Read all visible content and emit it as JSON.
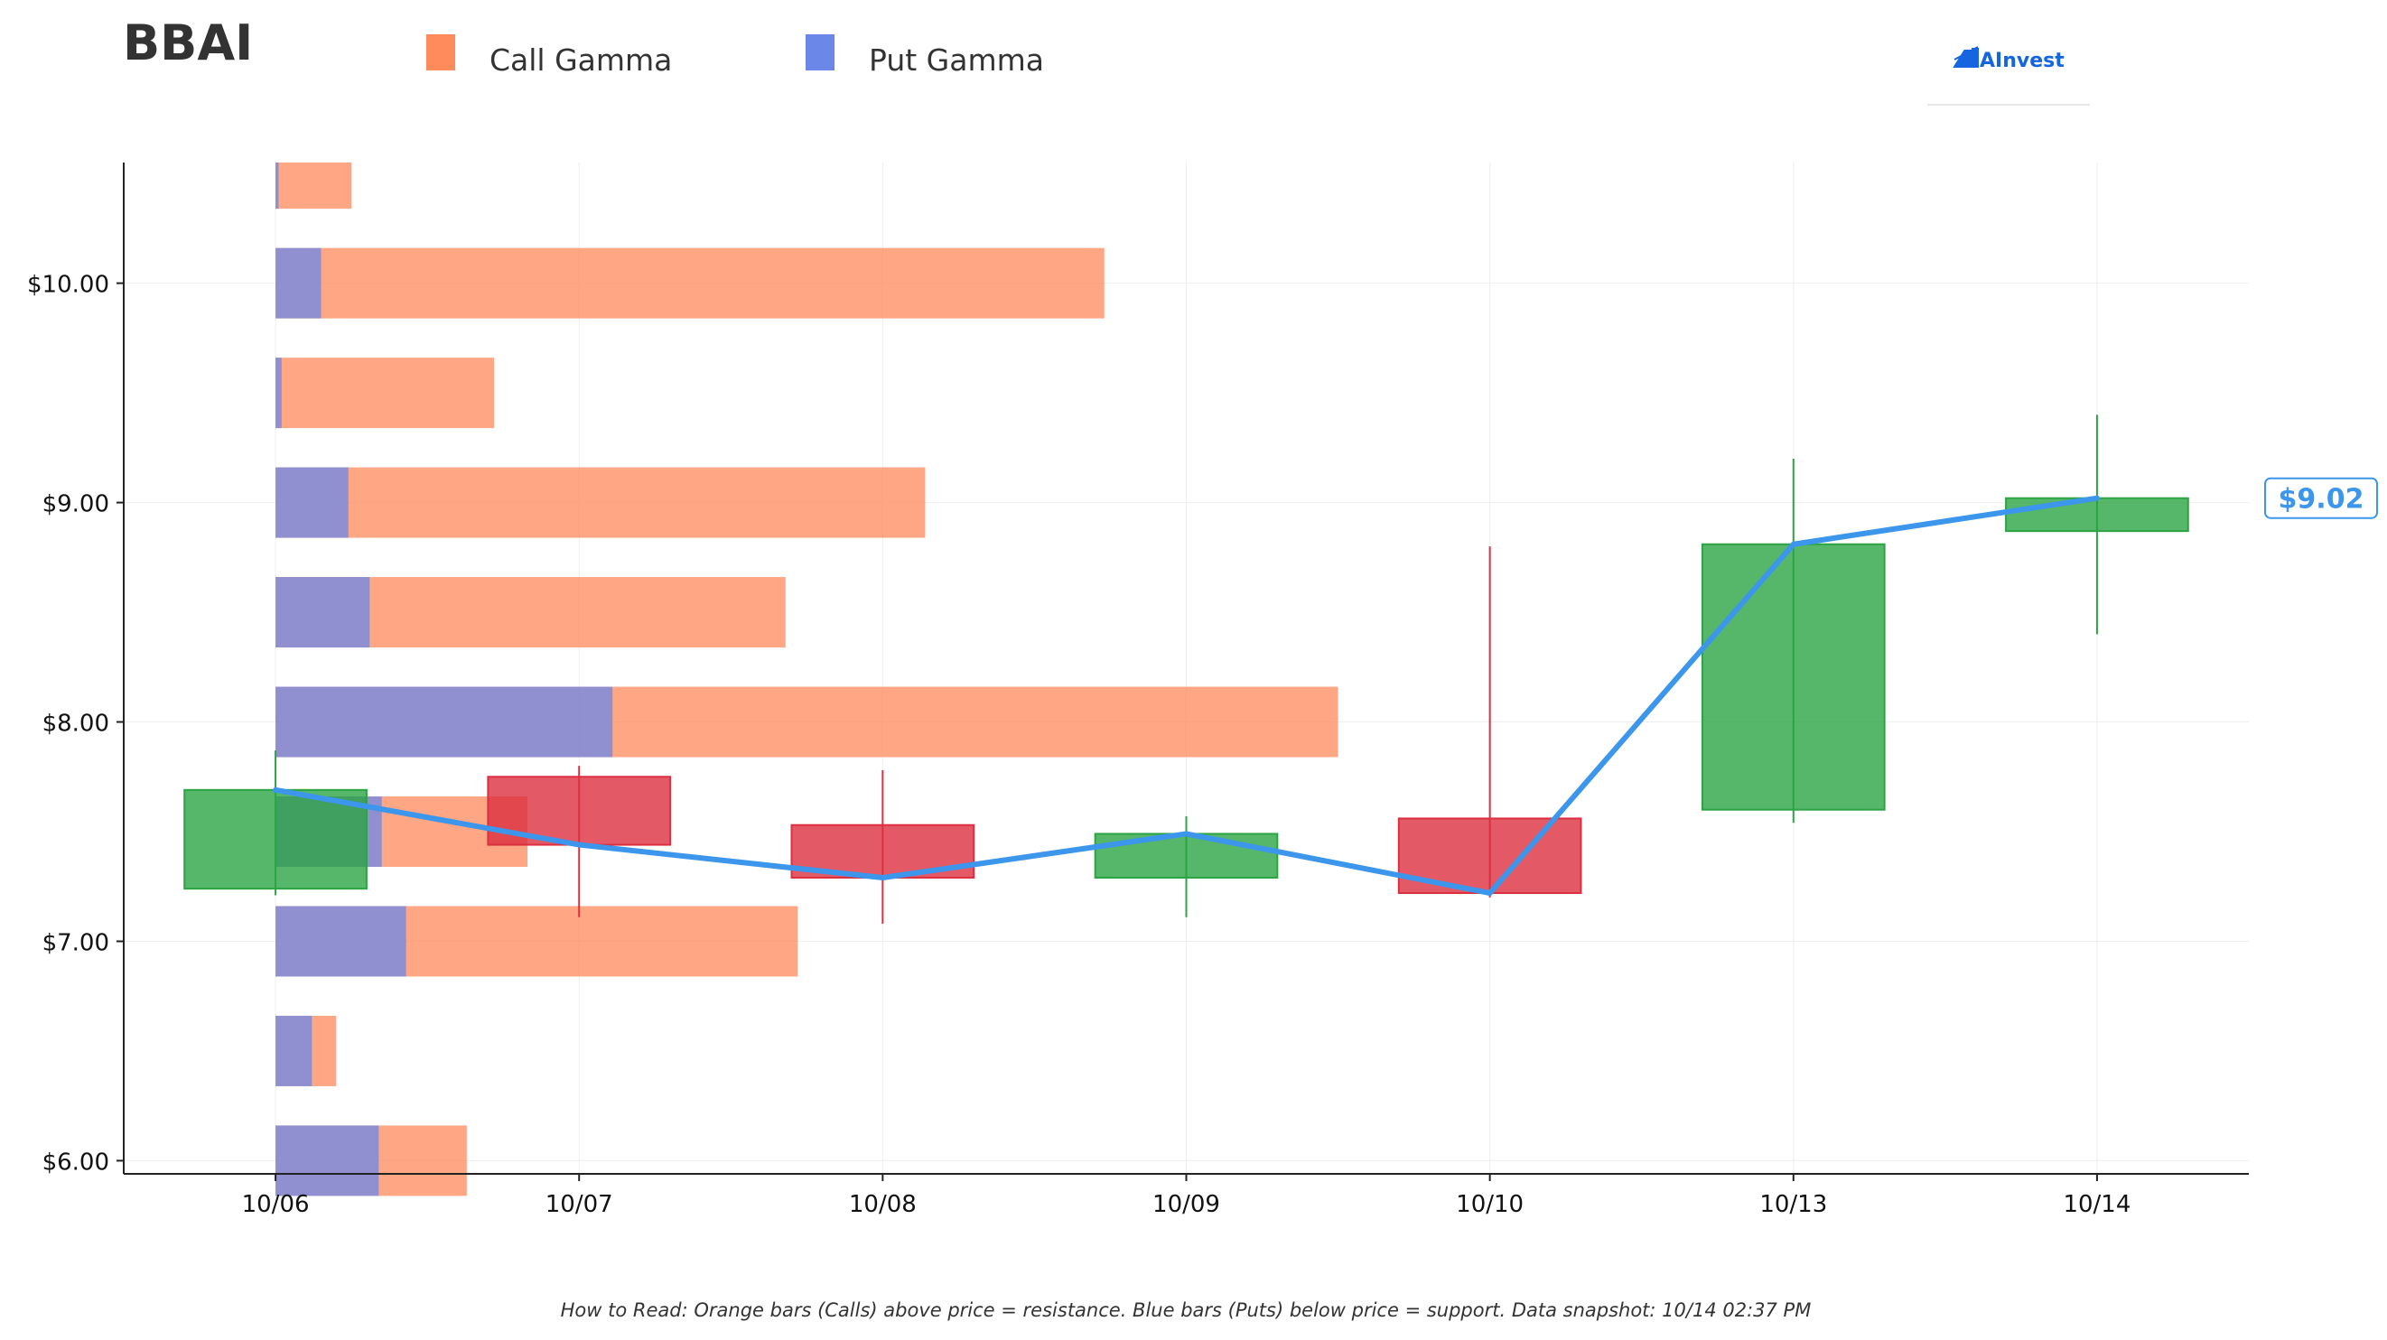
{
  "header": {
    "ticker": "BBAI",
    "brand": "AInvest"
  },
  "legend": {
    "items": [
      {
        "label": "Call Gamma",
        "color": "#ff8a5c"
      },
      {
        "label": "Put Gamma",
        "color": "#6b87e8"
      }
    ]
  },
  "footer": {
    "note": "How to Read: Orange bars (Calls) above price = resistance. Blue bars (Puts) below price = support. Data snapshot: 10/14 02:37 PM"
  },
  "colors": {
    "call": "#ff8a5c",
    "put": "#6b87e8",
    "up": "#2ca444",
    "down": "#dc2f40",
    "price_line": "#3c96ec",
    "axis": "#222222",
    "grid": "#eeeeee"
  },
  "chart_data": [
    {
      "type": "bar",
      "orientation": "horizontal",
      "note": "gamma exposure by strike, relative magnitude in date-axis units",
      "strikes": [
        10.5,
        10.0,
        9.5,
        9.0,
        8.5,
        8.0,
        7.5,
        7.0,
        6.5,
        6.0
      ],
      "series": [
        {
          "name": "Call Gamma",
          "values": [
            0.25,
            2.73,
            0.72,
            2.14,
            1.68,
            3.5,
            0.83,
            1.72,
            0.2,
            0.63
          ]
        },
        {
          "name": "Put Gamma",
          "values": [
            0.01,
            0.15,
            0.02,
            0.24,
            0.31,
            1.11,
            0.35,
            0.43,
            0.12,
            0.34
          ]
        }
      ]
    },
    {
      "type": "candlestick",
      "categories": [
        "10/06",
        "10/07",
        "10/08",
        "10/09",
        "10/10",
        "10/13",
        "10/14"
      ],
      "open": [
        7.24,
        7.75,
        7.53,
        7.29,
        7.56,
        7.6,
        8.87
      ],
      "close": [
        7.69,
        7.44,
        7.29,
        7.49,
        7.22,
        8.81,
        9.02
      ],
      "high": [
        7.87,
        7.8,
        7.78,
        7.57,
        8.8,
        9.2,
        9.4
      ],
      "low": [
        7.21,
        7.11,
        7.08,
        7.11,
        7.2,
        7.54,
        8.4
      ],
      "price_line": [
        7.69,
        7.44,
        7.29,
        7.49,
        7.22,
        8.81,
        9.02
      ],
      "last_price_label": "$9.02",
      "y_ticks": [
        6.0,
        7.0,
        8.0,
        9.0,
        10.0
      ],
      "y_tick_labels": [
        "$6.00",
        "$7.00",
        "$8.00",
        "$9.00",
        "$10.00"
      ],
      "ylim": [
        5.94,
        10.55
      ],
      "xlim": [
        -0.5,
        6.5
      ]
    }
  ]
}
